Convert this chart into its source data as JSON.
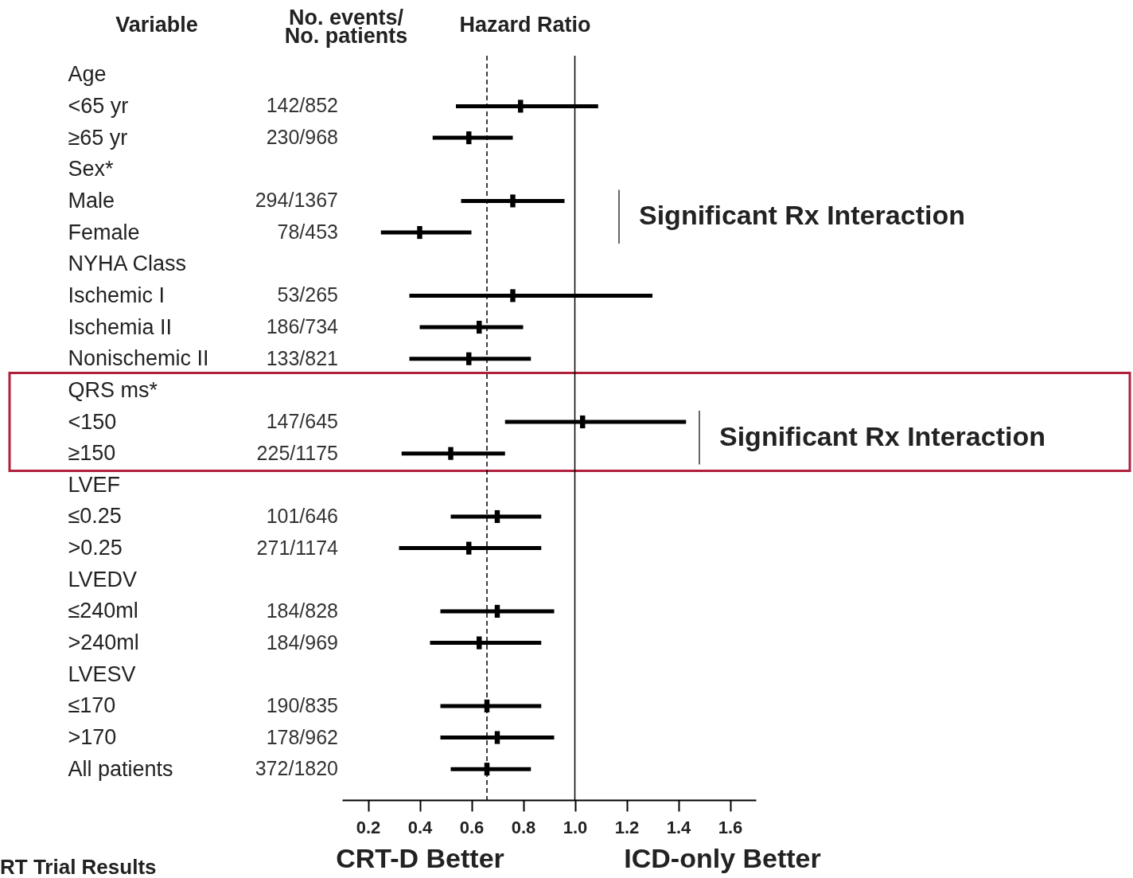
{
  "chart_data": {
    "type": "scatter",
    "orientation": "horizontal",
    "title": "Hazard Ratio",
    "ylabel": "Variable",
    "categories": [
      "Age",
      "<65 yr",
      "≥65 yr",
      "Sex*",
      "Male",
      "Female",
      "NYHA Class",
      "Ischemic I",
      "Ischemia II",
      "Nonischemic II",
      "QRS ms*",
      "<150",
      "≥150",
      "LVEF",
      "≤0.25",
      ">0.25",
      "LVEDV",
      "≤240ml",
      ">240ml",
      "LVESV",
      "≤170",
      ">170",
      "All patients"
    ],
    "color": "#000000",
    "values": [
      null,
      0.79,
      0.59,
      null,
      0.76,
      0.4,
      null,
      0.76,
      0.63,
      0.59,
      null,
      1.03,
      0.52,
      null,
      0.7,
      0.59,
      null,
      0.7,
      0.63,
      null,
      0.66,
      0.7,
      0.66
    ],
    "errors": [
      null,
      [
        0.54,
        1.09
      ],
      [
        0.45,
        0.76
      ],
      null,
      [
        0.56,
        0.96
      ],
      [
        0.25,
        0.6
      ],
      null,
      [
        0.36,
        1.3
      ],
      [
        0.4,
        0.8
      ],
      [
        0.36,
        0.83
      ],
      null,
      [
        0.73,
        1.43
      ],
      [
        0.33,
        0.73
      ],
      null,
      [
        0.52,
        0.87
      ],
      [
        0.32,
        0.87
      ],
      null,
      [
        0.48,
        0.92
      ],
      [
        0.44,
        0.87
      ],
      null,
      [
        0.48,
        0.87
      ],
      [
        0.48,
        0.92
      ],
      [
        0.52,
        0.83
      ]
    ],
    "xlim": [
      0.1,
      1.7
    ],
    "xticks": [
      0.2,
      0.4,
      0.6,
      0.8,
      {
        "value": 1.0,
        "label": "1.0"
      },
      1.2,
      1.4,
      1.6
    ],
    "grid": false,
    "marker": "square",
    "ref_lines": [
      {
        "axis": "x",
        "value": 1.0,
        "line_style": "solid"
      },
      {
        "axis": "x",
        "value": 0.66,
        "line_style": "dashed"
      }
    ],
    "annotations": [
      "No. events/\nNo. patients",
      "CRT-D Better",
      "ICD-only Better",
      "RT Trial Results",
      "142/852",
      "230/968",
      "294/1367",
      "78/453",
      "53/265",
      "186/734",
      "133/821",
      "147/645",
      "225/1175",
      "101/646",
      "271/1174",
      "184/828",
      "184/969",
      "190/835",
      "178/962",
      "372/1820",
      "Significant Rx Interaction",
      "Significant Rx Interaction"
    ]
  }
}
